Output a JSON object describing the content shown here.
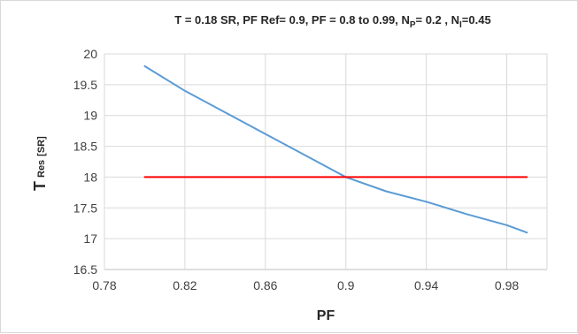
{
  "chart_data": {
    "type": "line",
    "title": {
      "part1": "T = 0.18 SR, PF Ref= 0.9, PF = 0.8 to 0.99,  N",
      "sub1": "P",
      "part2": "= 0.2 , N",
      "sub2": "I",
      "part3": "=0.45"
    },
    "xlabel": "PF",
    "ylabel": {
      "main": "T",
      "sub": "Res",
      "unit": "[SR]"
    },
    "xlim": [
      0.78,
      1.0
    ],
    "ylim": [
      16.5,
      20
    ],
    "xticks": [
      "0.78",
      "0.82",
      "0.86",
      "0.9",
      "0.94",
      "0.98"
    ],
    "yticks": [
      "16.5",
      "17",
      "17.5",
      "18",
      "18.5",
      "19",
      "19.5",
      "20"
    ],
    "grid": true,
    "legend": "none",
    "series": [
      {
        "color": "#5b9bd5",
        "x": [
          0.8,
          0.82,
          0.84,
          0.86,
          0.88,
          0.9,
          0.92,
          0.94,
          0.96,
          0.98,
          0.99
        ],
        "y": [
          19.8,
          19.4,
          19.05,
          18.7,
          18.35,
          18.0,
          17.77,
          17.6,
          17.4,
          17.22,
          17.1
        ]
      },
      {
        "color": "#ff0000",
        "x": [
          0.8,
          0.99
        ],
        "y": [
          18.0,
          18.0
        ]
      }
    ]
  }
}
